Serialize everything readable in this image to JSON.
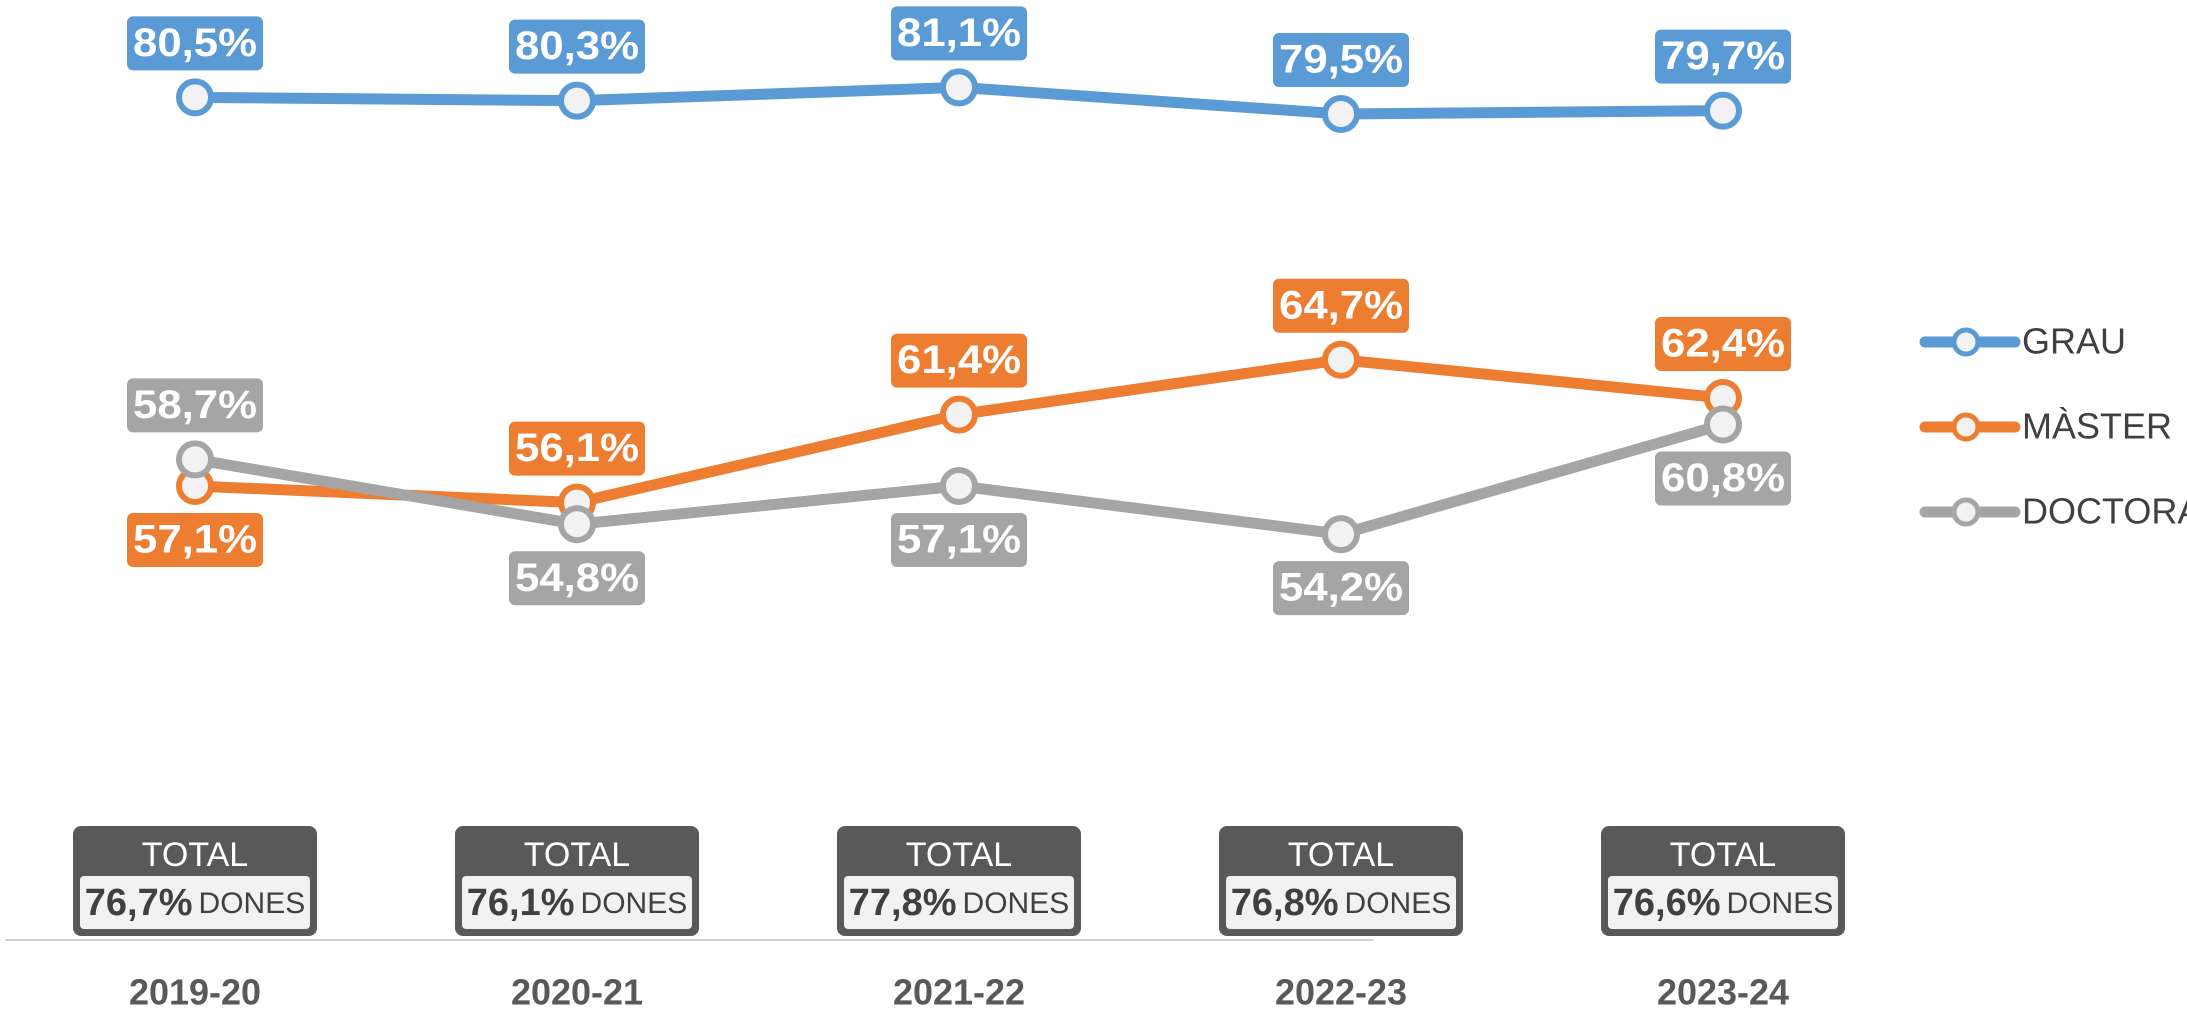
{
  "chart_data": {
    "type": "line",
    "categories": [
      "2019-20",
      "2020-21",
      "2021-22",
      "2022-23",
      "2023-24"
    ],
    "series": [
      {
        "name": "GRAU",
        "color": "#5b9bd5",
        "values": [
          80.5,
          80.3,
          81.1,
          79.5,
          79.7
        ],
        "value_labels": [
          "80,5%",
          "80,3%",
          "81,1%",
          "79,5%",
          "79,7%"
        ]
      },
      {
        "name": "MÀSTER",
        "color": "#ed7d31",
        "values": [
          57.1,
          56.1,
          61.4,
          64.7,
          62.4
        ],
        "value_labels": [
          "57,1%",
          "56,1%",
          "61,4%",
          "64,7%",
          "62,4%"
        ]
      },
      {
        "name": "DOCTORAT",
        "color": "#a5a5a5",
        "values": [
          58.7,
          54.8,
          57.1,
          54.2,
          60.8
        ],
        "value_labels": [
          "58,7%",
          "54,8%",
          "57,1%",
          "54,2%",
          "60,8%"
        ]
      }
    ],
    "ylim": [
      40,
      86
    ],
    "totals": {
      "label": "TOTAL",
      "unit": "DONES",
      "values": [
        76.7,
        76.1,
        77.8,
        76.8,
        76.6
      ],
      "value_labels": [
        "76,7%",
        "76,1%",
        "77,8%",
        "76,8%",
        "76,6%"
      ]
    },
    "legend": "right"
  }
}
